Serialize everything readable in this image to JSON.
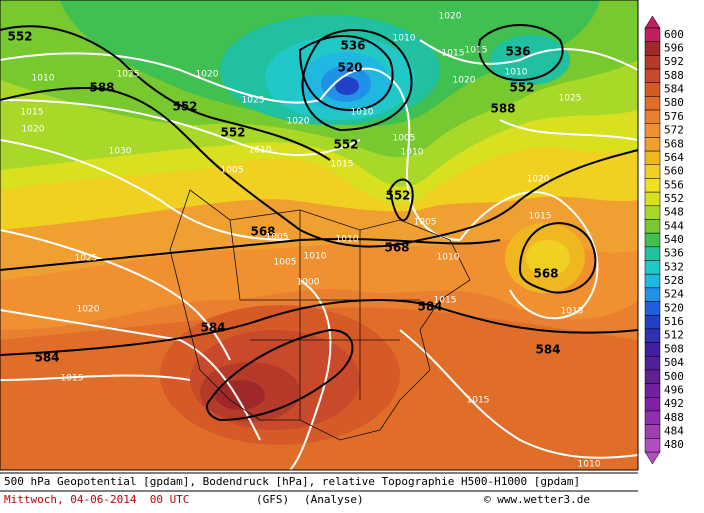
{
  "map_labels": [
    552,
    588,
    552,
    552,
    536,
    520,
    536,
    552,
    588,
    552,
    552,
    568,
    568,
    568,
    584,
    584,
    584,
    584,
    1010,
    1025,
    1020,
    1015,
    1020,
    1030,
    1025,
    1020,
    1015,
    1005,
    1010,
    1010,
    1015,
    1020,
    1015,
    1010,
    1025,
    1020,
    1015,
    1015,
    1005,
    1010,
    1015,
    1005,
    1005,
    1010,
    1010,
    1005,
    1000,
    1015,
    1010,
    1015,
    1010,
    1020,
    1010,
    1020,
    1025
  ],
  "colorbar": {
    "levels": [
      600,
      596,
      592,
      588,
      584,
      580,
      576,
      572,
      568,
      564,
      560,
      556,
      552,
      548,
      544,
      540,
      536,
      532,
      528,
      524,
      520,
      516,
      512,
      508,
      504,
      500,
      496,
      492,
      488,
      484,
      480
    ],
    "colors": [
      "#c02060",
      "#a02828",
      "#b63a2a",
      "#c84a2a",
      "#d65a28",
      "#e06e28",
      "#e88030",
      "#f09030",
      "#f0a030",
      "#f0b820",
      "#f0d020",
      "#f0e020",
      "#d8e020",
      "#a8d828",
      "#78c830",
      "#40c050",
      "#20c0a0",
      "#20c8c8",
      "#20b8e0",
      "#2090e8",
      "#2060e0",
      "#2040c8",
      "#3030b0",
      "#4020a0",
      "#502098",
      "#602090",
      "#7020a0",
      "#8020a8",
      "#9030b0",
      "#a040b0",
      "#b050c0"
    ]
  },
  "footer": {
    "line1": "500 hPa Geopotential [gpdam], Bodendruck [hPa], relative Topographie H500-H1000 [gpdam]",
    "date": "Mittwoch, 04-06-2014  00 UTC",
    "model": "(GFS)",
    "run": "(Analyse)",
    "credit": "© www.wetter3.de"
  }
}
